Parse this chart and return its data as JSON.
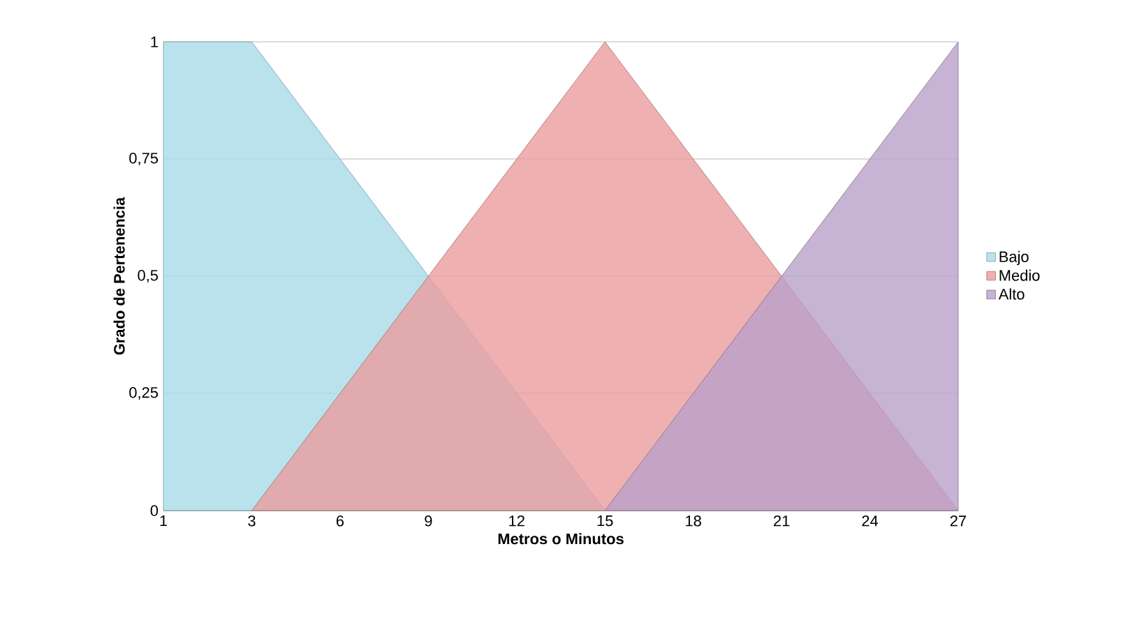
{
  "chart_data": {
    "type": "area",
    "xlabel": "Metros o Minutos",
    "ylabel": "Grado de Pertenencia",
    "categories": [
      "1",
      "3",
      "6",
      "9",
      "12",
      "15",
      "18",
      "21",
      "24",
      "27"
    ],
    "series": [
      {
        "name": "Bajo",
        "color": "#a8dbe9",
        "values": [
          1,
          1,
          0.75,
          0.5,
          0.25,
          0,
          null,
          null,
          null,
          null
        ]
      },
      {
        "name": "Medio",
        "color": "#eb9c9d",
        "values": [
          null,
          0,
          0.25,
          0.5,
          0.75,
          1,
          0.75,
          0.5,
          0.25,
          0
        ]
      },
      {
        "name": "Alto",
        "color": "#b9a0c9",
        "values": [
          null,
          null,
          null,
          null,
          null,
          0,
          0.25,
          0.5,
          0.75,
          1
        ]
      }
    ],
    "ylim": [
      0,
      1
    ],
    "yticks": [
      0,
      {
        "value": 0.25,
        "label": "0,25"
      },
      {
        "value": 0.5,
        "label": "0,5"
      },
      {
        "value": 0.75,
        "label": "0,75"
      },
      1
    ],
    "grid": "y",
    "legend": "right"
  }
}
